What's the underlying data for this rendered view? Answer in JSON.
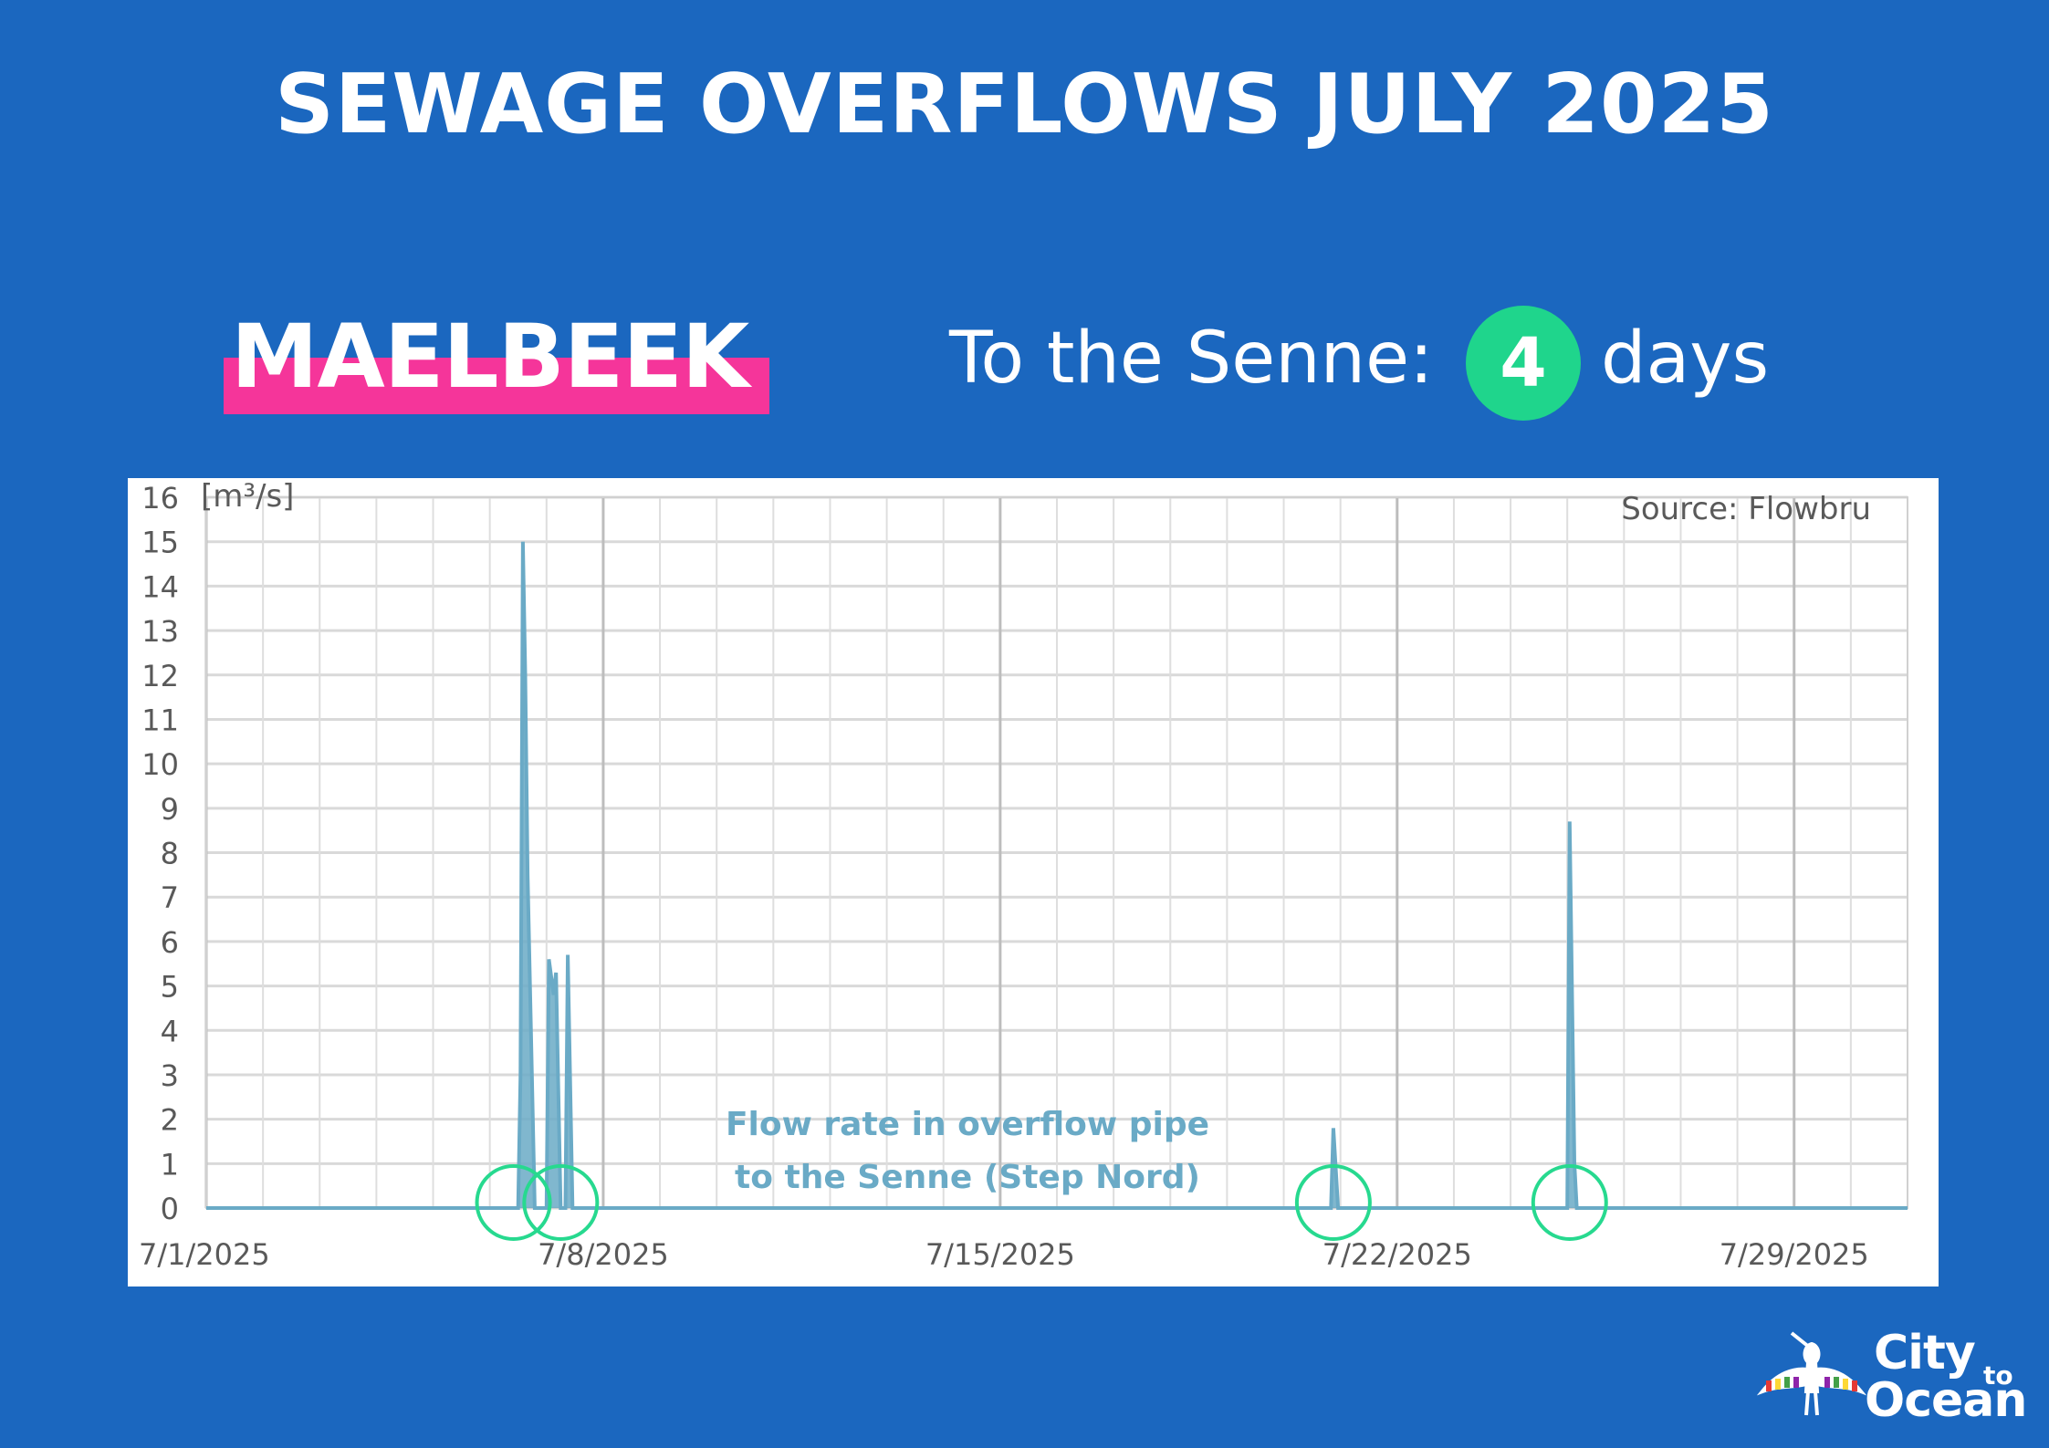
{
  "header": {
    "title": "SEWAGE OVERFLOWS JULY 2025",
    "station": "MAELBEEK",
    "senne_label": "To the Senne:",
    "days_count": "4",
    "days_label": "days"
  },
  "logo": {
    "line1": "City",
    "line_to": "to",
    "line2": "Ocean"
  },
  "colors": {
    "background": "#1b67bf",
    "highlight": "#f5359a",
    "badge": "#1fd58c",
    "series": "#6aaac6",
    "circles": "#27d98f"
  },
  "chart_data": {
    "type": "area",
    "ylabel": "[m³/s]",
    "source": "Source: Flowbru",
    "annotation": [
      "Flow rate in overflow pipe",
      "to the Senne (Step Nord)"
    ],
    "xlim": [
      "7/1/2025",
      "7/31/2025"
    ],
    "x_ticks": [
      "7/1/2025",
      "7/8/2025",
      "7/15/2025",
      "7/22/2025",
      "7/29/2025"
    ],
    "ylim": [
      0,
      16
    ],
    "y_ticks": [
      0,
      1,
      2,
      3,
      4,
      5,
      6,
      7,
      8,
      9,
      10,
      11,
      12,
      13,
      14,
      15,
      16
    ],
    "grid": true,
    "series": [
      {
        "points": [
          [
            "2025-07-01 00:00",
            0
          ],
          [
            "2025-07-06 12:00",
            0
          ],
          [
            "2025-07-06 13:00",
            3
          ],
          [
            "2025-07-06 14:00",
            15.0
          ],
          [
            "2025-07-06 15:00",
            12
          ],
          [
            "2025-07-06 16:00",
            7.5
          ],
          [
            "2025-07-06 19:00",
            0
          ],
          [
            "2025-07-07 00:00",
            0
          ],
          [
            "2025-07-07 01:00",
            5.6
          ],
          [
            "2025-07-07 03:00",
            4.8
          ],
          [
            "2025-07-07 04:00",
            5.3
          ],
          [
            "2025-07-07 06:00",
            0
          ],
          [
            "2025-07-07 08:00",
            0
          ],
          [
            "2025-07-07 09:00",
            5.7
          ],
          [
            "2025-07-07 11:00",
            0
          ],
          [
            "2025-07-20 20:00",
            0
          ],
          [
            "2025-07-20 21:00",
            1.8
          ],
          [
            "2025-07-20 23:00",
            0
          ],
          [
            "2025-07-25 00:00",
            0
          ],
          [
            "2025-07-25 01:00",
            8.7
          ],
          [
            "2025-07-25 03:00",
            1
          ],
          [
            "2025-07-25 04:00",
            0
          ],
          [
            "2025-07-31 00:00",
            0
          ]
        ]
      }
    ],
    "highlight_circles": [
      "2025-07-06 10:00",
      "2025-07-07 06:00",
      "2025-07-20 21:00",
      "2025-07-25 01:00"
    ]
  }
}
